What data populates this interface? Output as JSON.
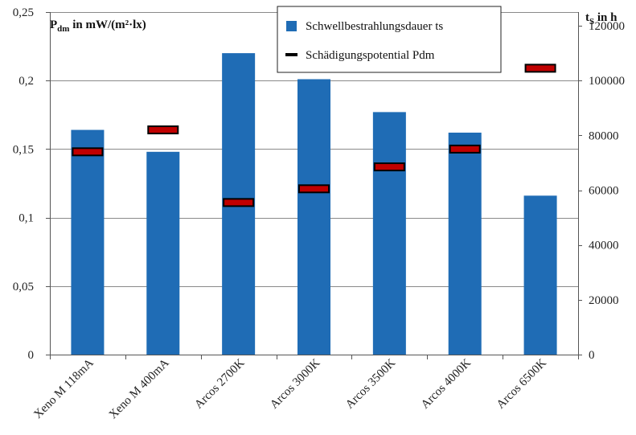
{
  "chart_data": {
    "type": "bar",
    "categories": [
      "Xeno M 118mA",
      "Xeno M 400mA",
      "Arcos 2700K",
      "Arcos 3000K",
      "Arcos 3500K",
      "Arcos 4000K",
      "Arcos 6500K"
    ],
    "series": [
      {
        "name": "Schwellbestrahlungsdauer ts",
        "kind": "bar",
        "axis": "right",
        "color": "#1f6cb5",
        "values": [
          82000,
          74000,
          110000,
          100500,
          88500,
          81000,
          58000
        ]
      },
      {
        "name": "Schädigungspotential Pdm",
        "kind": "marker",
        "axis": "left",
        "color": "#c00000",
        "values": [
          0.148,
          0.164,
          0.111,
          0.121,
          0.137,
          0.15,
          0.209
        ]
      }
    ],
    "left_axis": {
      "title_main": "P",
      "title_sub": "dm",
      "title_rest": " in mW/(m²·lx)",
      "ylim": [
        0,
        0.25
      ],
      "ticks": [
        0,
        0.05,
        0.1,
        0.15,
        0.2,
        0.25
      ],
      "tick_labels": [
        "0",
        "0,05",
        "0,1",
        "0,15",
        "0,2",
        "0,25"
      ]
    },
    "right_axis": {
      "title_main": "t",
      "title_sub": "S",
      "title_rest": " in h",
      "ylim": [
        0,
        125000
      ],
      "ticks": [
        0,
        20000,
        40000,
        60000,
        80000,
        100000,
        120000
      ],
      "tick_labels": [
        "0",
        "20000",
        "40000",
        "60000",
        "80000",
        "100000",
        "120000"
      ]
    },
    "grid": true,
    "legend_position": "top-center"
  }
}
